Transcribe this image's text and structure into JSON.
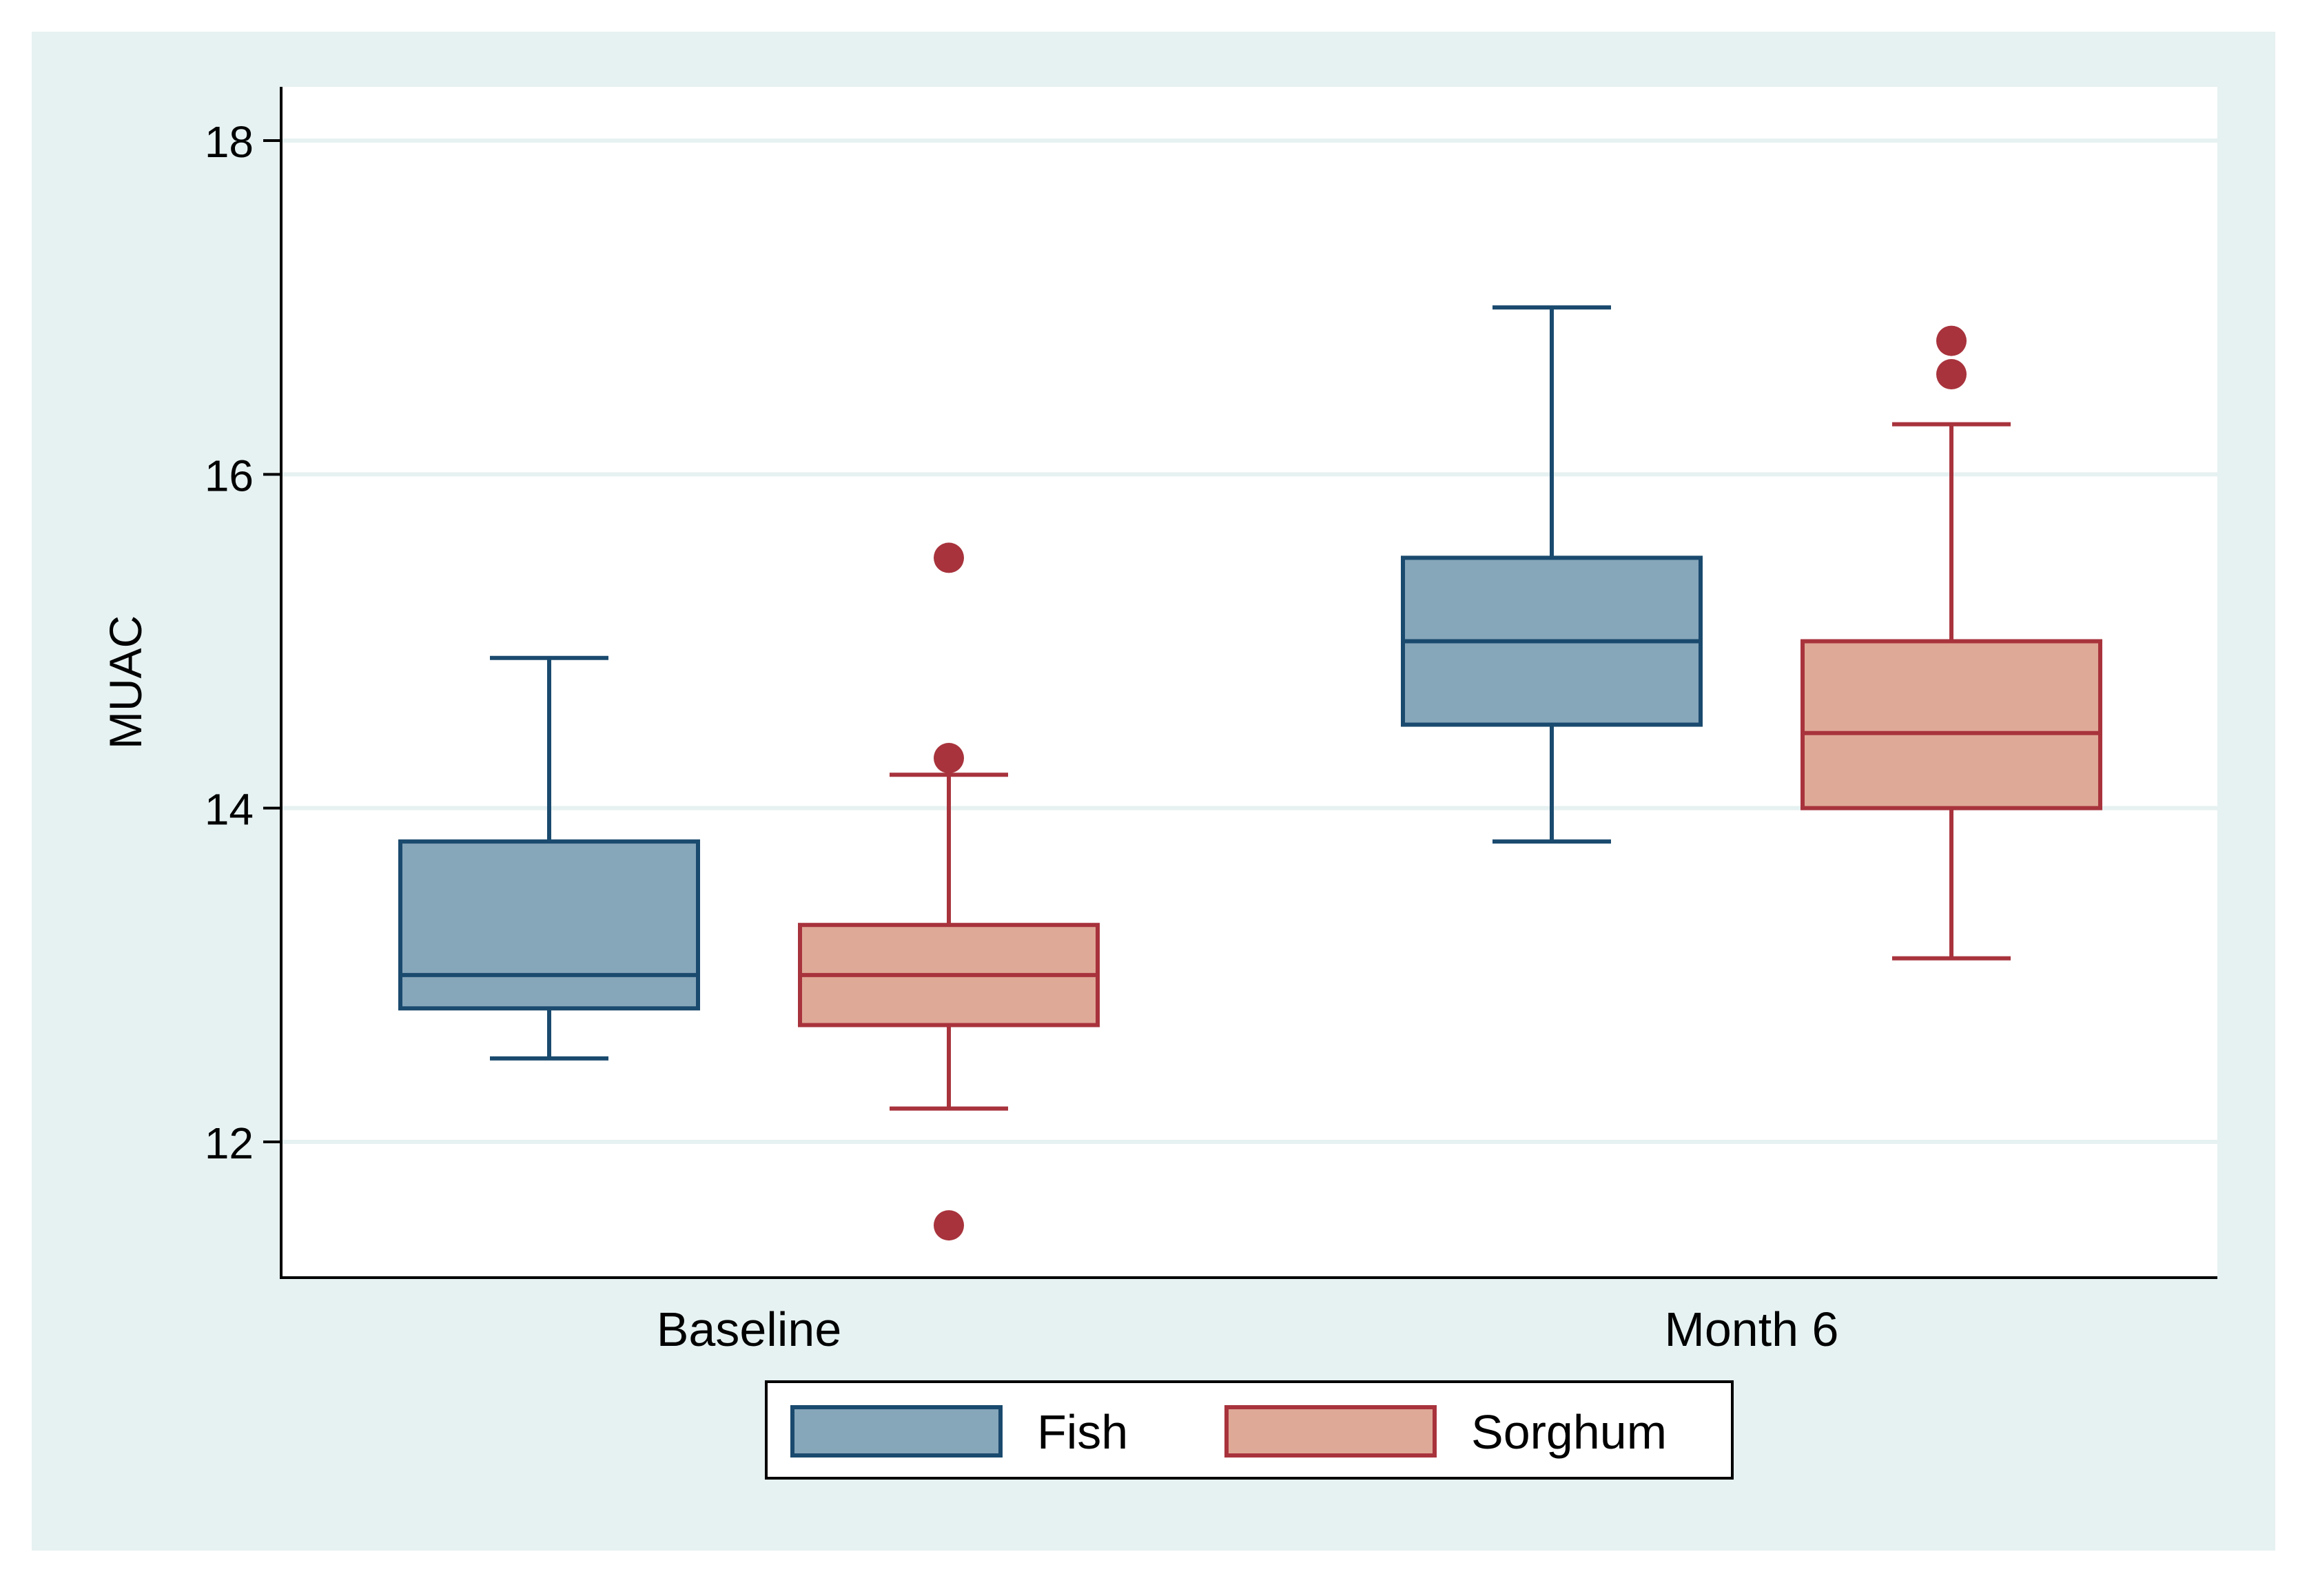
{
  "chart_data": {
    "type": "boxplot",
    "title": "",
    "xlabel": "",
    "ylabel": "MUAC",
    "ylim": [
      11.2,
      18.3
    ],
    "yticks": [
      12,
      14,
      16,
      18
    ],
    "grid": true,
    "legend_position": "bottom",
    "categories": [
      "Baseline",
      "Month 6"
    ],
    "series": [
      {
        "name": "Fish",
        "fill": "#86a6ba",
        "stroke": "#1a4a6e",
        "boxes": [
          {
            "category": "Baseline",
            "whisker_low": 12.5,
            "q1": 12.8,
            "median": 13.0,
            "q3": 13.8,
            "whisker_high": 14.9,
            "outliers": []
          },
          {
            "category": "Month 6",
            "whisker_low": 13.8,
            "q1": 14.5,
            "median": 15.0,
            "q3": 15.5,
            "whisker_high": 17.0,
            "outliers": []
          }
        ]
      },
      {
        "name": "Sorghum",
        "fill": "#dfa997",
        "stroke": "#a8333c",
        "boxes": [
          {
            "category": "Baseline",
            "whisker_low": 12.2,
            "q1": 12.7,
            "median": 13.0,
            "q3": 13.3,
            "whisker_high": 14.2,
            "outliers": [
              11.5,
              14.3,
              15.5
            ]
          },
          {
            "category": "Month 6",
            "whisker_low": 13.1,
            "q1": 14.0,
            "median": 14.45,
            "q3": 15.0,
            "whisker_high": 16.3,
            "outliers": [
              16.6,
              16.8
            ]
          }
        ]
      }
    ],
    "colors": {
      "outer_background": "#e6f1f1",
      "plot_background": "#ffffff",
      "grid": "#e6f1f1",
      "axis": "#000000",
      "outlier_fill": "#a8333c"
    }
  }
}
